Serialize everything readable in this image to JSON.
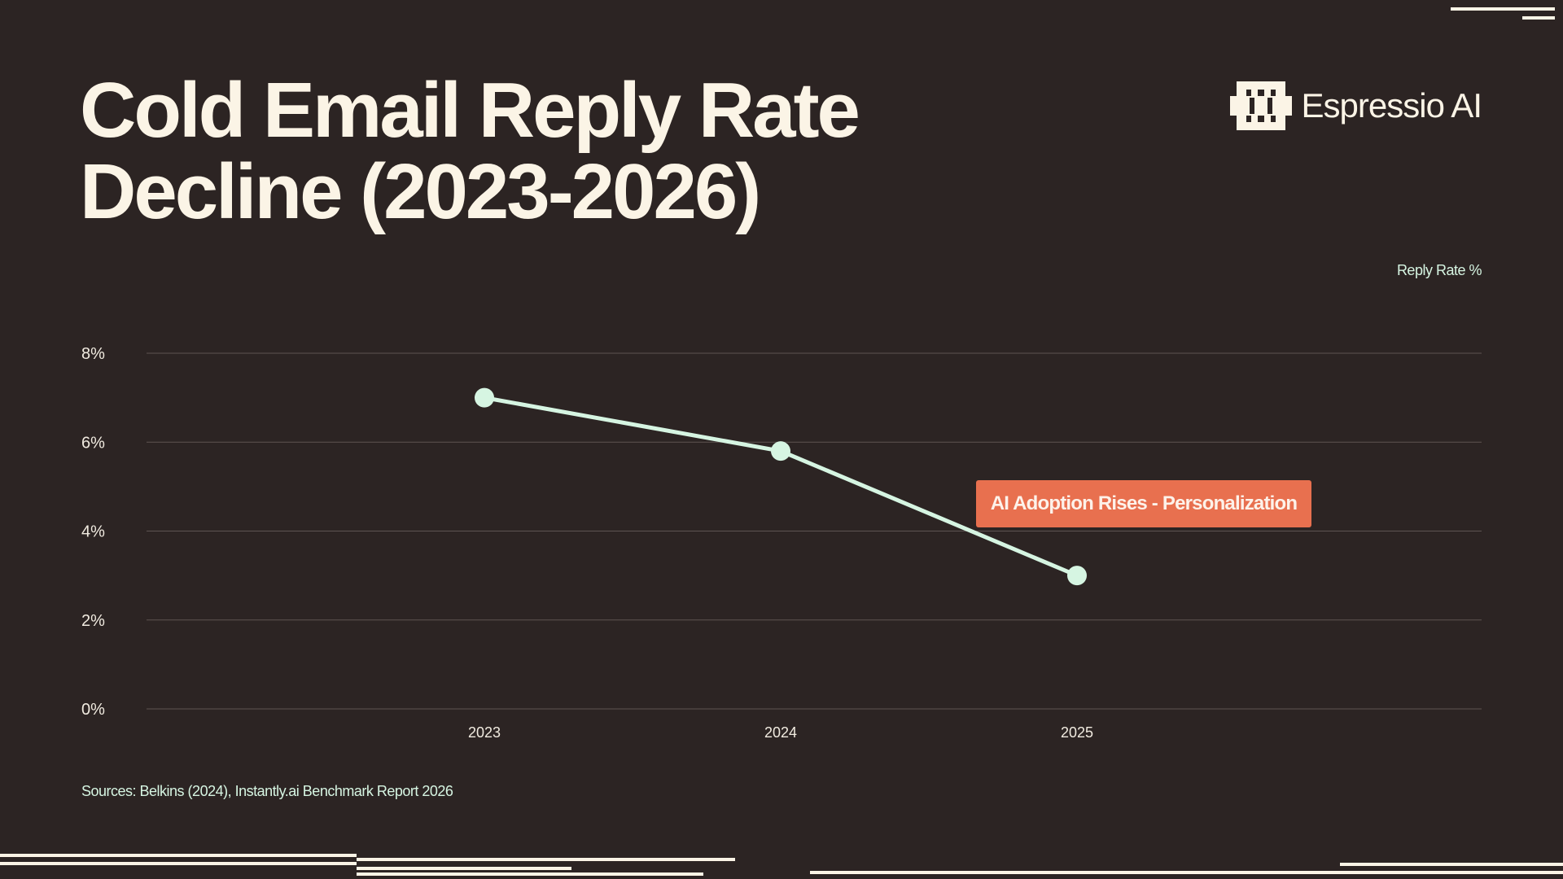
{
  "title_lines": [
    "Cold Email Reply Rate",
    "Decline (2023-2026)"
  ],
  "brand": {
    "name": "Espressio AI",
    "icon": "espressio-logo-icon"
  },
  "colors": {
    "background": "#2c2423",
    "line": "#d6f5e2",
    "annotation": "#e8704f",
    "text": "#fbf4e6"
  },
  "chart_data": {
    "type": "line",
    "series_label": "Reply Rate %",
    "categories": [
      "2023",
      "2024",
      "2025"
    ],
    "values": [
      7.0,
      5.8,
      3.0
    ],
    "ylim": [
      0,
      8
    ],
    "y_ticks": [
      {
        "value": 0,
        "label": "0%"
      },
      {
        "value": 2,
        "label": "2%"
      },
      {
        "value": 4,
        "label": "4%"
      },
      {
        "value": 6,
        "label": "6%"
      },
      {
        "value": 8,
        "label": "8%"
      }
    ],
    "grid": true,
    "legend_position": "top-right",
    "annotation": "AI Adoption Rises - Personalization"
  },
  "sources": "Sources: Belkins (2024), Instantly.ai Benchmark Report 2026"
}
